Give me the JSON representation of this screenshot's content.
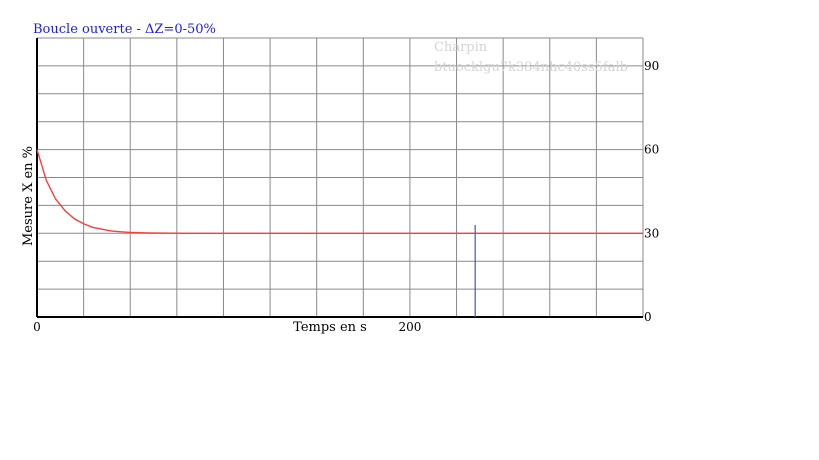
{
  "chart_data": {
    "type": "line",
    "title": "Boucle ouverte - ΔZ=0-50%",
    "xlabel": "Temps en s",
    "ylabel": "Mesure X en %",
    "xlim": [
      0,
      325
    ],
    "ylim": [
      0,
      100
    ],
    "x_ticks": [
      {
        "value": 0,
        "label": "0"
      },
      {
        "value": 200,
        "label": "200"
      }
    ],
    "y_ticks": [
      {
        "value": 0,
        "label": "0"
      },
      {
        "value": 30,
        "label": "30"
      },
      {
        "value": 60,
        "label": "60"
      },
      {
        "value": 90,
        "label": "90"
      }
    ],
    "grid": true,
    "series": [
      {
        "color": "#ff3b3b",
        "x": [
          0,
          5,
          10,
          15,
          20,
          25,
          30,
          40,
          50,
          60,
          80,
          100,
          150,
          200,
          250,
          325
        ],
        "y": [
          60,
          49,
          42.3,
          38.1,
          35.2,
          33.4,
          32.1,
          30.8,
          30.3,
          30.1,
          30,
          30,
          30,
          30,
          30,
          30
        ]
      }
    ],
    "vline": {
      "x": 235,
      "y_top": 33,
      "color": "#3a5fa8"
    },
    "watermark": [
      "Charpin",
      "btuocklgu7k384nhc40ss5falb"
    ],
    "colors": {
      "title": "#1a1aff",
      "axis": "#000000",
      "grid": "#8a8a8a",
      "background": "#ffffff"
    }
  }
}
